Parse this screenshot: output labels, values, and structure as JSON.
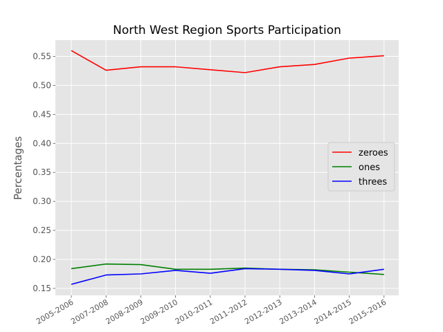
{
  "chart_data": {
    "type": "line",
    "title": "North West Region Sports Participation",
    "xlabel": "",
    "ylabel": "Percentages",
    "categories": [
      "2005-2006",
      "2007-2008",
      "2008-2009",
      "2009-2010",
      "2010-2011",
      "2011-2012",
      "2012-2013",
      "2013-2014",
      "2014-2015",
      "2015-2016"
    ],
    "ylim": [
      0.138,
      0.578
    ],
    "yticks": [
      0.15,
      0.2,
      0.25,
      0.3,
      0.35,
      0.4,
      0.45,
      0.5,
      0.55
    ],
    "ytick_labels": [
      "0.15",
      "0.20",
      "0.25",
      "0.30",
      "0.35",
      "0.40",
      "0.45",
      "0.50",
      "0.55"
    ],
    "grid": true,
    "legend_position": "center-right",
    "series": [
      {
        "name": "zeroes",
        "color": "#ff0000",
        "values": [
          0.56,
          0.526,
          0.532,
          0.532,
          0.527,
          0.522,
          0.532,
          0.536,
          0.547,
          0.551
        ]
      },
      {
        "name": "ones",
        "color": "#008000",
        "values": [
          0.184,
          0.192,
          0.191,
          0.183,
          0.183,
          0.185,
          0.183,
          0.182,
          0.178,
          0.174
        ]
      },
      {
        "name": "threes",
        "color": "#0000ff",
        "values": [
          0.157,
          0.173,
          0.175,
          0.181,
          0.176,
          0.184,
          0.183,
          0.181,
          0.175,
          0.183
        ]
      }
    ]
  }
}
